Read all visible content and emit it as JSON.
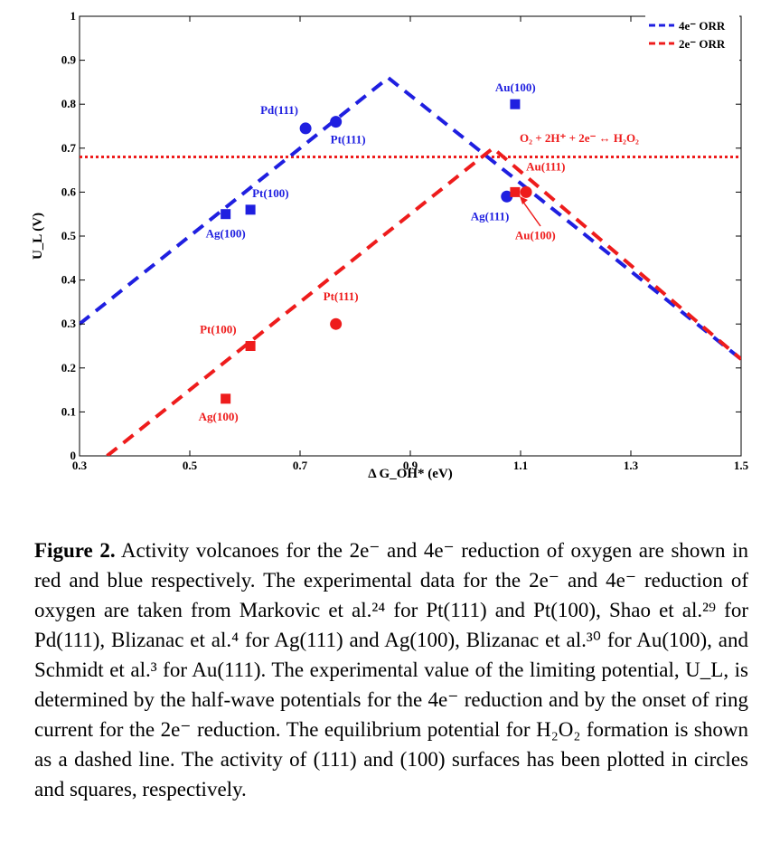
{
  "chart_data": {
    "type": "line",
    "title": "",
    "xlabel": "Δ G_OH* (eV)",
    "ylabel": "U_L (V)",
    "xlim": [
      0.3,
      1.5
    ],
    "ylim": [
      0.0,
      1.0
    ],
    "x_ticks": [
      "0.3",
      "0.5",
      "0.7",
      "0.9",
      "1.1",
      "1.3",
      "1.5"
    ],
    "x_tick_values": [
      0.3,
      0.5,
      0.7,
      0.9,
      1.1,
      1.3,
      1.5
    ],
    "y_ticks": [
      "0",
      "0.1",
      "0.2",
      "0.3",
      "0.4",
      "0.5",
      "0.6",
      "0.7",
      "0.8",
      "0.9",
      "1"
    ],
    "y_tick_values": [
      0.0,
      0.1,
      0.2,
      0.3,
      0.4,
      0.5,
      0.6,
      0.7,
      0.8,
      0.9,
      1.0
    ],
    "grid": false,
    "legend_position": "top-right",
    "series": [
      {
        "name": "4e⁻ ORR",
        "color": "#1f1fe0",
        "style": "dashed",
        "x": [
          0.3,
          0.86,
          1.5
        ],
        "y": [
          0.3,
          0.86,
          0.22
        ]
      },
      {
        "name": "2e⁻ ORR",
        "color": "#ee1c1c",
        "style": "dashed",
        "x": [
          0.35,
          1.05,
          1.5
        ],
        "y": [
          0.0,
          0.7,
          0.22
        ]
      }
    ],
    "reference_line": {
      "y": 0.68,
      "color": "#ee1c1c",
      "style": "dotted",
      "label": "O₂ + 2H⁺ + 2e⁻ ↔ H₂O₂"
    },
    "points": [
      {
        "label": "Pd(111)",
        "x": 0.71,
        "y": 0.745,
        "shape": "circle",
        "color": "#1f1fe0"
      },
      {
        "label": "Pt(111)",
        "x": 0.765,
        "y": 0.76,
        "shape": "circle",
        "color": "#1f1fe0"
      },
      {
        "label": "Pt(100)",
        "x": 0.61,
        "y": 0.56,
        "shape": "square",
        "color": "#1f1fe0"
      },
      {
        "label": "Ag(100)",
        "x": 0.565,
        "y": 0.55,
        "shape": "square",
        "color": "#1f1fe0"
      },
      {
        "label": "Au(100)",
        "x": 1.09,
        "y": 0.8,
        "shape": "square",
        "color": "#1f1fe0"
      },
      {
        "label": "Ag(111)",
        "x": 1.075,
        "y": 0.59,
        "shape": "circle",
        "color": "#1f1fe0"
      },
      {
        "label": "Au(111)",
        "x": 1.11,
        "y": 0.6,
        "shape": "circle",
        "color": "#ee1c1c"
      },
      {
        "label": "Au(100)",
        "x": 1.09,
        "y": 0.6,
        "shape": "square",
        "color": "#ee1c1c"
      },
      {
        "label": "Pt(111)",
        "x": 0.765,
        "y": 0.3,
        "shape": "circle",
        "color": "#ee1c1c"
      },
      {
        "label": "Pt(100)",
        "x": 0.61,
        "y": 0.25,
        "shape": "square",
        "color": "#ee1c1c"
      },
      {
        "label": "Ag(100)",
        "x": 0.565,
        "y": 0.13,
        "shape": "square",
        "color": "#ee1c1c"
      }
    ]
  },
  "caption": {
    "figure_label": "Figure 2.",
    "text": "Activity volcanoes for the 2e⁻ and 4e⁻ reduction of oxygen are shown in red and blue respectively. The experimental data for the 2e⁻ and 4e⁻ reduction of oxygen are taken from Markovic et al.²⁴ for Pt(111) and Pt(100), Shao et al.²⁹ for Pd(111), Blizanac et al.⁴ for Ag(111) and Ag(100), Blizanac et al.³⁰ for Au(100), and Schmidt et al.³ for Au(111). The experimental value of the limiting potential, U_L, is determined by the half-wave potentials for the 4e⁻ reduction and by the onset of ring current for the 2e⁻ reduction. The equilibrium potential for H₂O₂ formation is shown as a dashed line. The activity of (111) and (100) surfaces has been plotted in circles and squares, respectively."
  }
}
